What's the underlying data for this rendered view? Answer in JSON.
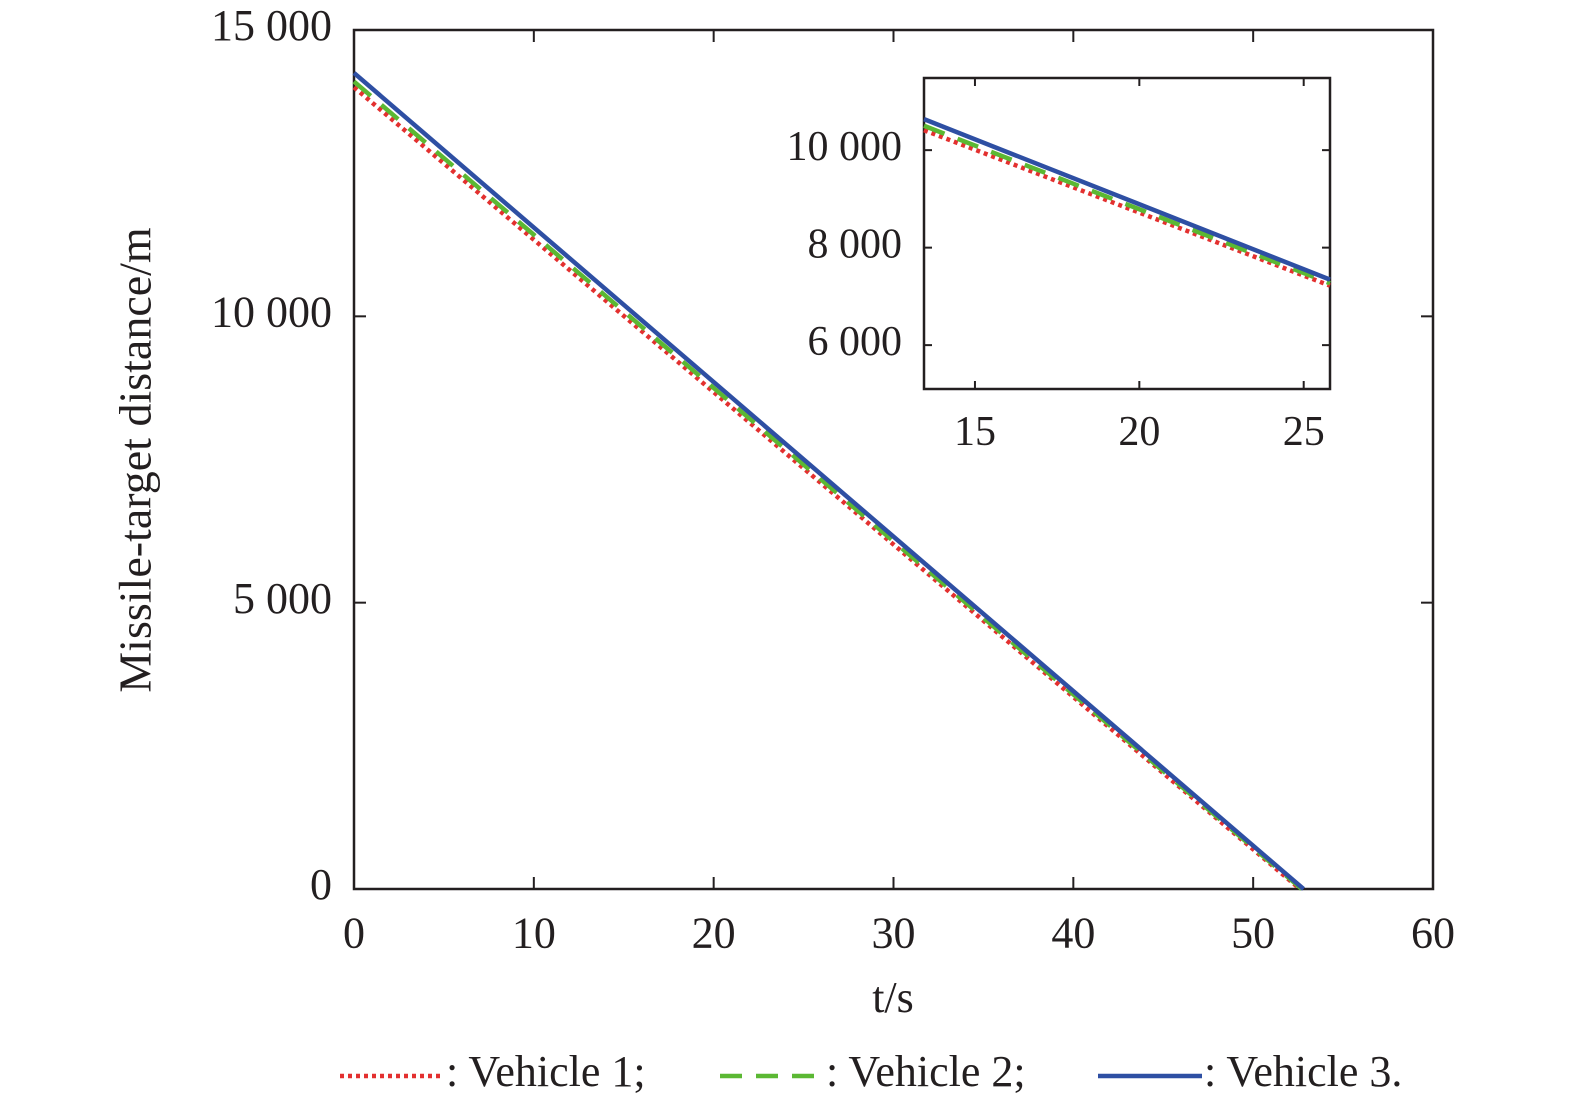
{
  "chart_data": [
    {
      "type": "line",
      "ylabel": "Missile-target distance/m",
      "xlabel": "t/s",
      "xlim": [
        0,
        60
      ],
      "xticks": [
        0,
        10,
        20,
        30,
        40,
        50,
        60
      ],
      "ylim": [
        0,
        15000
      ],
      "yticks": [
        0,
        {
          "value": 5000,
          "label": "5 000"
        },
        {
          "value": 10000,
          "label": "10 000"
        },
        {
          "value": 15000,
          "label": "15 000"
        }
      ],
      "legend": "bottom",
      "series": [
        {
          "name": ": Vehicle 1;",
          "color": "#e3302f",
          "linestyle": "dotted",
          "x": [
            0,
            52.6
          ],
          "values": [
            14000,
            0
          ]
        },
        {
          "name": ": Vehicle 2;",
          "color": "#5bb833",
          "linestyle": "dashed",
          "x": [
            0,
            52.7
          ],
          "values": [
            14100,
            0
          ]
        },
        {
          "name": ": Vehicle 3.",
          "color": "#2e4fa3",
          "linestyle": "solid",
          "x": [
            0,
            52.8
          ],
          "values": [
            14250,
            0
          ]
        }
      ]
    },
    {
      "type": "line",
      "xlim": [
        13.45,
        25.8
      ],
      "xticks": [
        15,
        20,
        25
      ],
      "ylim": [
        5100,
        11480
      ],
      "yticks": [
        {
          "value": 6000,
          "label": "6 000"
        },
        {
          "value": 8000,
          "label": "8 000"
        },
        {
          "value": 10000,
          "label": "10 000"
        }
      ],
      "series": [
        {
          "color": "#e3302f",
          "linestyle": "dotted",
          "x": [
            13.45,
            25.8
          ],
          "values": [
            10410,
            7220
          ]
        },
        {
          "color": "#5bb833",
          "linestyle": "dashed",
          "x": [
            13.45,
            25.8
          ],
          "values": [
            10500,
            7270
          ]
        },
        {
          "color": "#2e4fa3",
          "linestyle": "solid",
          "x": [
            13.45,
            25.8
          ],
          "values": [
            10636,
            7344
          ]
        }
      ]
    }
  ]
}
